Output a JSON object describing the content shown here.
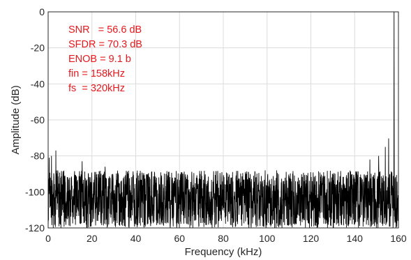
{
  "chart_data": {
    "type": "line",
    "xlabel": "Frequency (kHz)",
    "ylabel": "Amplitude (dB)",
    "xlim": [
      0,
      160
    ],
    "ylim": [
      -120,
      0
    ],
    "xticks": [
      0,
      20,
      40,
      60,
      80,
      100,
      120,
      140,
      160
    ],
    "yticks": [
      0,
      -20,
      -40,
      -60,
      -80,
      -100,
      -120
    ],
    "grid": true,
    "line_color": "#000000",
    "annotation_color": "#e8171b",
    "annotations": [
      "SNR   = 56.6 dB",
      "SFDR = 70.3 dB",
      "ENOB = 9.1 b",
      "fin = 158kHz",
      "fs  = 320kHz"
    ],
    "noise_floor_db": -103,
    "noise_floor_range_db": [
      -120,
      -88
    ],
    "spurs": [
      {
        "x": 0.5,
        "y": -81
      },
      {
        "x": 1.5,
        "y": -80
      },
      {
        "x": 3.5,
        "y": -77
      },
      {
        "x": 15.5,
        "y": -83
      },
      {
        "x": 26,
        "y": -86
      },
      {
        "x": 147,
        "y": -82
      },
      {
        "x": 151,
        "y": -80
      },
      {
        "x": 154,
        "y": -75
      },
      {
        "x": 155.5,
        "y": -70.3
      },
      {
        "x": 158,
        "y": 0
      }
    ]
  }
}
